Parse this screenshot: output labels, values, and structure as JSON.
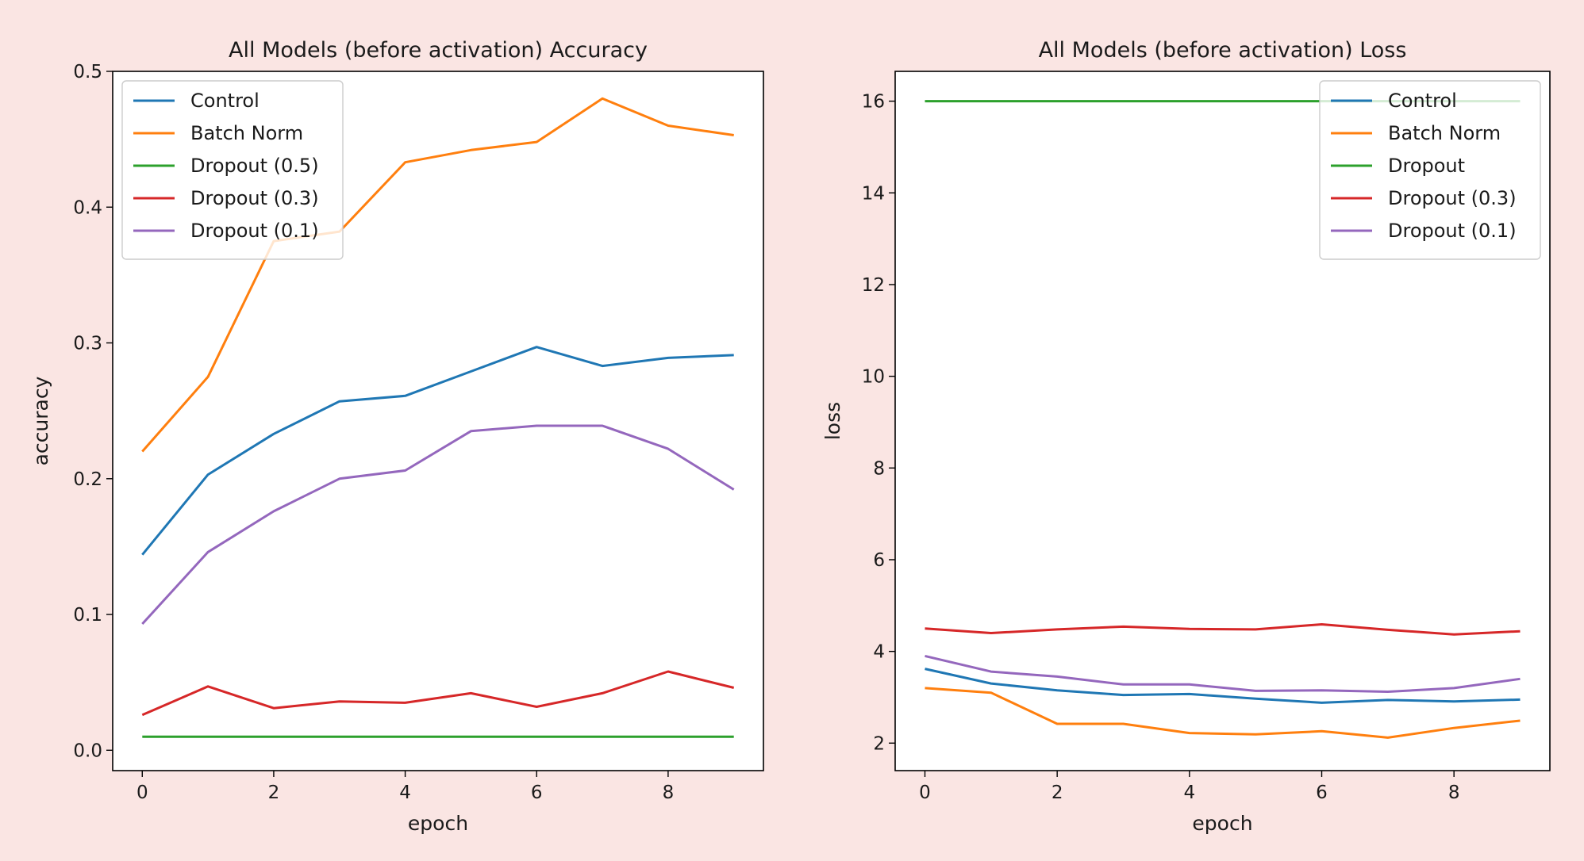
{
  "chart_data": [
    {
      "type": "line",
      "title": "All Models (before activation) Accuracy",
      "xlabel": "epoch",
      "ylabel": "accuracy",
      "xlim": [
        -0.45,
        9.45
      ],
      "ylim": [
        -0.015,
        0.5
      ],
      "xticks": [
        0,
        2,
        4,
        6,
        8
      ],
      "xtick_labels": [
        "0",
        "2",
        "4",
        "6",
        "8"
      ],
      "yticks": [
        0.0,
        0.1,
        0.2,
        0.3,
        0.4,
        0.5
      ],
      "ytick_labels": [
        "0.0",
        "0.1",
        "0.2",
        "0.3",
        "0.4",
        "0.5"
      ],
      "grid": false,
      "legend_position": "top-left",
      "x": [
        0,
        1,
        2,
        3,
        4,
        5,
        6,
        7,
        8,
        9
      ],
      "series": [
        {
          "name": "Control",
          "color": "#1f77b4",
          "values": [
            0.144,
            0.203,
            0.233,
            0.257,
            0.261,
            0.279,
            0.297,
            0.283,
            0.289,
            0.291
          ]
        },
        {
          "name": "Batch Norm",
          "color": "#ff7f0e",
          "values": [
            0.22,
            0.275,
            0.375,
            0.382,
            0.433,
            0.442,
            0.448,
            0.48,
            0.46,
            0.453
          ]
        },
        {
          "name": "Dropout (0.5)",
          "color": "#2ca02c",
          "values": [
            0.01,
            0.01,
            0.01,
            0.01,
            0.01,
            0.01,
            0.01,
            0.01,
            0.01,
            0.01
          ]
        },
        {
          "name": "Dropout (0.3)",
          "color": "#d62728",
          "values": [
            0.026,
            0.047,
            0.031,
            0.036,
            0.035,
            0.042,
            0.032,
            0.042,
            0.058,
            0.046
          ]
        },
        {
          "name": "Dropout (0.1)",
          "color": "#9467bd",
          "values": [
            0.093,
            0.146,
            0.176,
            0.2,
            0.206,
            0.235,
            0.239,
            0.239,
            0.222,
            0.192
          ]
        }
      ]
    },
    {
      "type": "line",
      "title": "All Models (before activation) Loss",
      "xlabel": "epoch",
      "ylabel": "loss",
      "xlim": [
        -0.45,
        9.45
      ],
      "ylim": [
        1.4,
        16.65
      ],
      "xticks": [
        0,
        2,
        4,
        6,
        8
      ],
      "xtick_labels": [
        "0",
        "2",
        "4",
        "6",
        "8"
      ],
      "yticks": [
        2,
        4,
        6,
        8,
        10,
        12,
        14,
        16
      ],
      "ytick_labels": [
        "2",
        "4",
        "6",
        "8",
        "10",
        "12",
        "14",
        "16"
      ],
      "grid": false,
      "legend_position": "top-right",
      "x": [
        0,
        1,
        2,
        3,
        4,
        5,
        6,
        7,
        8,
        9
      ],
      "series": [
        {
          "name": "Control",
          "color": "#1f77b4",
          "values": [
            3.62,
            3.3,
            3.15,
            3.05,
            3.07,
            2.97,
            2.88,
            2.94,
            2.91,
            2.95
          ]
        },
        {
          "name": "Batch Norm",
          "color": "#ff7f0e",
          "values": [
            3.2,
            3.1,
            2.42,
            2.42,
            2.22,
            2.19,
            2.26,
            2.12,
            2.33,
            2.49
          ]
        },
        {
          "name": "Dropout",
          "color": "#2ca02c",
          "values": [
            16.0,
            16.0,
            16.0,
            16.0,
            16.0,
            16.0,
            16.0,
            16.0,
            16.0,
            16.0
          ]
        },
        {
          "name": "Dropout (0.3)",
          "color": "#d62728",
          "values": [
            4.5,
            4.4,
            4.48,
            4.54,
            4.49,
            4.48,
            4.59,
            4.47,
            4.37,
            4.44
          ]
        },
        {
          "name": "Dropout (0.1)",
          "color": "#9467bd",
          "values": [
            3.9,
            3.56,
            3.45,
            3.28,
            3.28,
            3.14,
            3.15,
            3.12,
            3.2,
            3.4
          ]
        }
      ]
    }
  ]
}
